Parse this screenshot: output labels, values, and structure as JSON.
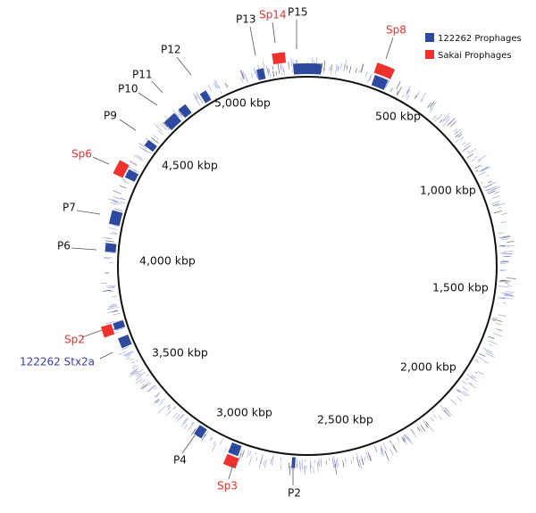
{
  "legend": [
    "122262 Prophages",
    "Sakai Prophages"
  ],
  "scale_labels": [
    "500 kbp",
    "1,000 kbp",
    "1,500 kbp",
    "2,000 kbp",
    "2,500 kbp",
    "3,000 kbp",
    "3,500 kbp",
    "4,000 kbp",
    "4,500 kbp",
    "5,000 kbp"
  ],
  "prophages": [
    "P13",
    "Sp14",
    "P15",
    "Sp8",
    "P12",
    "P11",
    "P10",
    "P9",
    "Sp6",
    "P7",
    "P6",
    "Sp2",
    "122262 Stx2a",
    "P4",
    "Sp3",
    "P2"
  ]
}
